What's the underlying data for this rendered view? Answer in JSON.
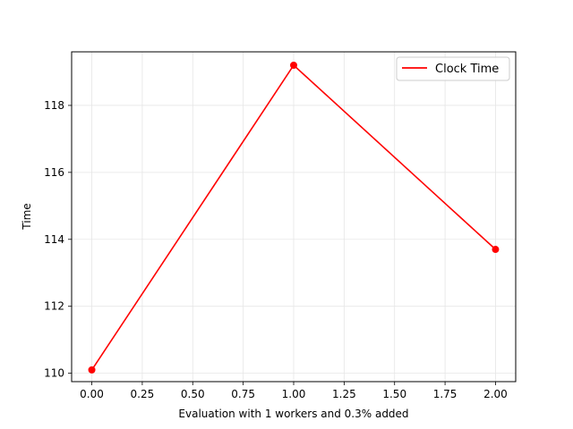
{
  "chart_data": {
    "type": "line",
    "xlabel": "Evaluation with 1 workers and 0.3% added",
    "ylabel": "Time",
    "xlim": [
      -0.1,
      2.1
    ],
    "ylim": [
      109.75,
      119.6
    ],
    "x_ticks": [
      "0.00",
      "0.25",
      "0.50",
      "0.75",
      "1.00",
      "1.25",
      "1.50",
      "1.75",
      "2.00"
    ],
    "y_ticks": [
      "110",
      "112",
      "114",
      "116",
      "118"
    ],
    "grid": true,
    "legend_position": "top-right",
    "series": [
      {
        "name": "Clock Time",
        "color": "#ff0000",
        "marker": "circle",
        "x": [
          0,
          1,
          2
        ],
        "y": [
          110.1,
          119.2,
          113.7
        ]
      }
    ]
  }
}
